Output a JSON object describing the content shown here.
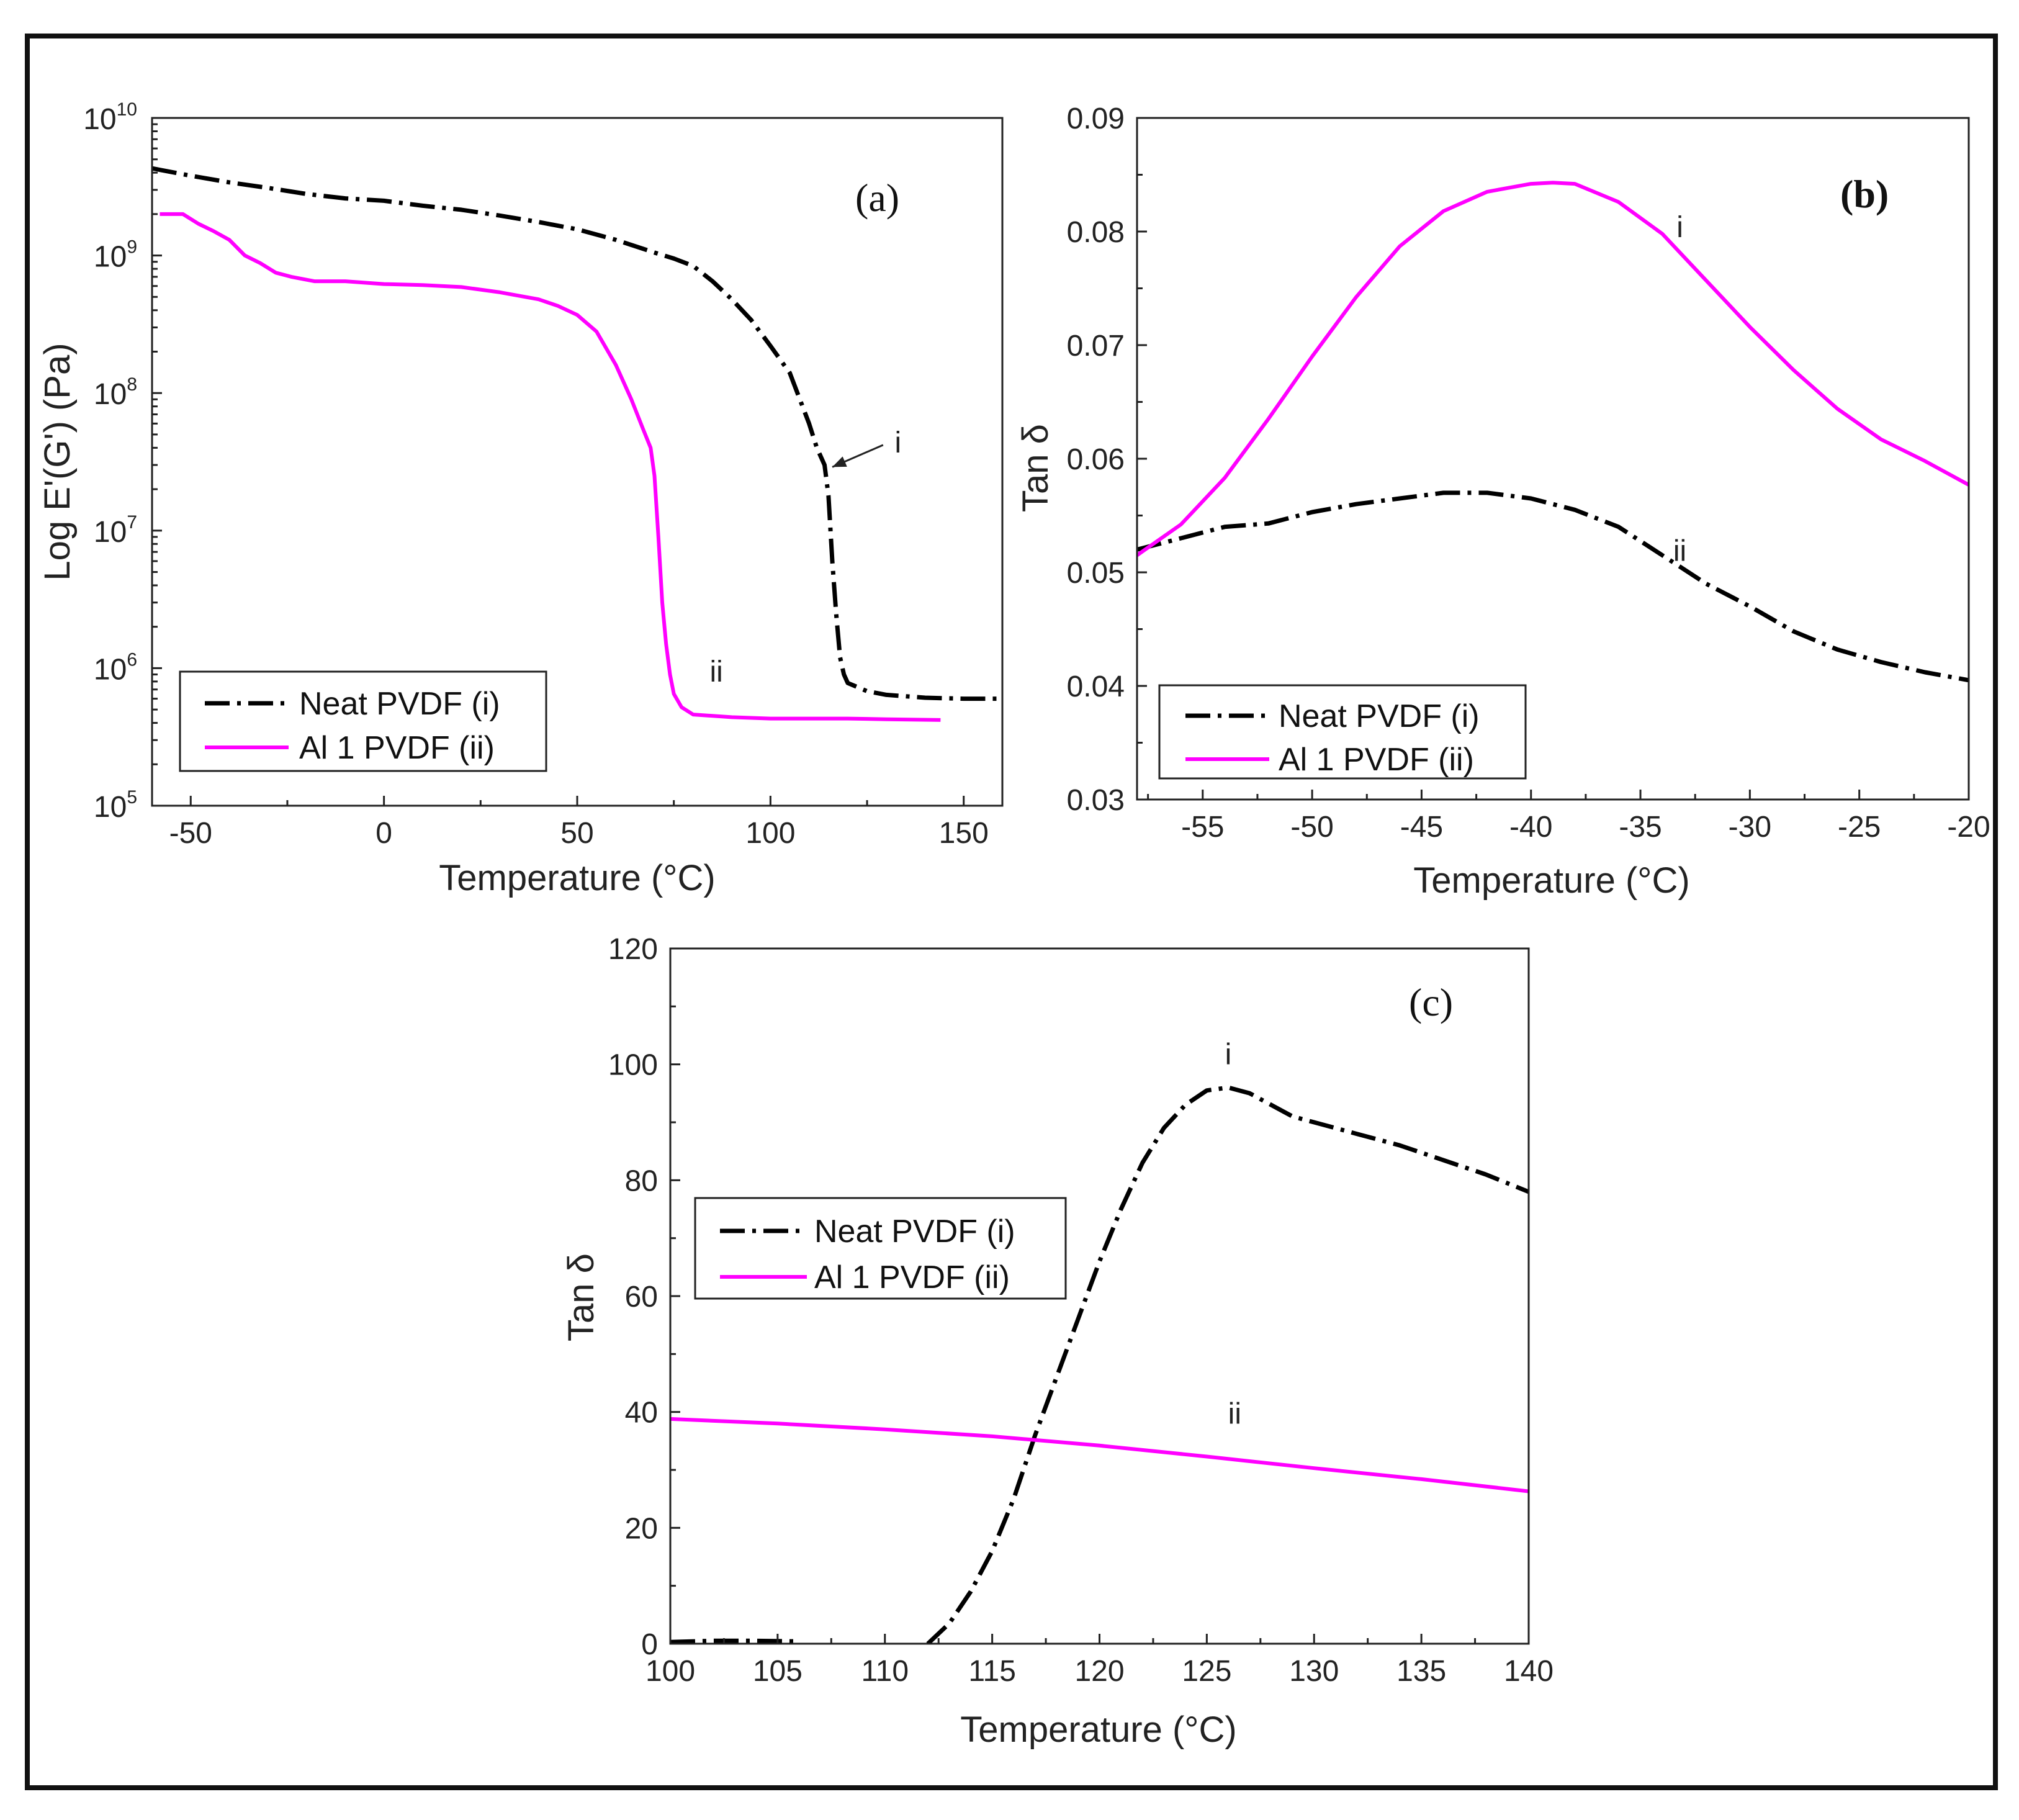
{
  "colors": {
    "neat": "#000000",
    "al": "#ff00ff",
    "axis": "#222222",
    "frame": "#111111"
  },
  "chart_data": [
    {
      "id": "a",
      "type": "line",
      "panel_label": "(a)",
      "xlabel": "Temperature (°C)",
      "ylabel": "Log E'(G') (Pa)",
      "yscale": "log",
      "xlim": [
        -60,
        160
      ],
      "ylim": [
        100000,
        10000000000
      ],
      "xticks": [
        -50,
        0,
        50,
        100,
        150
      ],
      "yticks": [
        {
          "value": 100000,
          "base": "10",
          "exp": "5"
        },
        {
          "value": 1000000,
          "base": "10",
          "exp": "6"
        },
        {
          "value": 10000000,
          "base": "10",
          "exp": "7"
        },
        {
          "value": 100000000,
          "base": "10",
          "exp": "8"
        },
        {
          "value": 1000000000,
          "base": "10",
          "exp": "9"
        },
        {
          "value": 10000000000,
          "base": "10",
          "exp": "10"
        }
      ],
      "legend": {
        "position": "bottom-left",
        "entries": [
          "Neat PVDF (i)",
          "Al 1 PVDF (ii)"
        ]
      },
      "annotations": [
        {
          "text": "i",
          "x": 133,
          "y": 37000000,
          "arrow_to": [
            116,
            29000000
          ]
        },
        {
          "text": "ii",
          "x": 86,
          "y": 800000
        }
      ],
      "series": [
        {
          "name": "Neat PVDF (i)",
          "style": "neat",
          "x": [
            -60,
            -50,
            -40,
            -30,
            -20,
            -10,
            0,
            10,
            20,
            30,
            40,
            50,
            60,
            70,
            75,
            80,
            85,
            90,
            95,
            100,
            105,
            110,
            112,
            114,
            115,
            116,
            117,
            118,
            119,
            120,
            125,
            130,
            140,
            150,
            160
          ],
          "y": [
            4300000000,
            3800000000,
            3400000000,
            3100000000,
            2800000000,
            2600000000,
            2500000000,
            2300000000,
            2150000000,
            1950000000,
            1750000000,
            1550000000,
            1300000000,
            1050000000,
            950000000,
            840000000,
            650000000,
            480000000,
            340000000,
            220000000,
            140000000,
            60000000,
            40000000,
            30000000,
            18000000,
            6000000,
            2500000,
            1200000,
            900000,
            780000,
            680000,
            640000,
            610000,
            600000,
            600000
          ]
        },
        {
          "name": "Al 1 PVDF (ii)",
          "style": "al",
          "x": [
            -58,
            -52,
            -48,
            -44,
            -40,
            -36,
            -32,
            -28,
            -24,
            -18,
            -10,
            0,
            10,
            20,
            30,
            40,
            45,
            50,
            55,
            60,
            64,
            67,
            69,
            70,
            71,
            72,
            73,
            74,
            75,
            77,
            80,
            90,
            100,
            110,
            120,
            130,
            144
          ],
          "y": [
            2000000000,
            2000000000,
            1700000000,
            1500000000,
            1300000000,
            1000000000,
            880000000,
            750000000,
            700000000,
            650000000,
            650000000,
            620000000,
            610000000,
            590000000,
            540000000,
            480000000,
            430000000,
            370000000,
            280000000,
            160000000,
            90000000,
            55000000,
            40000000,
            25000000,
            9000000,
            3000000,
            1500000,
            900000,
            650000,
            520000,
            460000,
            440000,
            430000,
            430000,
            430000,
            425000,
            420000
          ]
        }
      ]
    },
    {
      "id": "b",
      "type": "line",
      "panel_label": "(b)",
      "xlabel": "Temperature (°C)",
      "ylabel": "Tan δ",
      "xlim": [
        -58,
        -20
      ],
      "ylim": [
        0.03,
        0.09
      ],
      "xticks": [
        -55,
        -50,
        -45,
        -40,
        -35,
        -30,
        -25,
        -20
      ],
      "yticks": [
        0.03,
        0.04,
        0.05,
        0.06,
        0.07,
        0.08,
        0.09
      ],
      "legend": {
        "position": "bottom-left",
        "entries": [
          "Neat PVDF (i)",
          "Al 1 PVDF (ii)"
        ]
      },
      "annotations": [
        {
          "text": "i",
          "x": -33.2,
          "y": 0.0795
        },
        {
          "text": "ii",
          "x": -33.2,
          "y": 0.051
        }
      ],
      "series": [
        {
          "name": "Neat PVDF (i)",
          "style": "neat",
          "x": [
            -58,
            -56,
            -54,
            -52,
            -50,
            -48,
            -46,
            -44,
            -42,
            -40,
            -38,
            -36,
            -34,
            -32,
            -30,
            -28,
            -26,
            -24,
            -22,
            -20
          ],
          "y": [
            0.052,
            0.053,
            0.054,
            0.0543,
            0.0553,
            0.056,
            0.0565,
            0.057,
            0.057,
            0.0565,
            0.0555,
            0.054,
            0.0515,
            0.049,
            0.047,
            0.0448,
            0.0432,
            0.0421,
            0.0412,
            0.0405
          ]
        },
        {
          "name": "Al 1 PVDF (ii)",
          "style": "al",
          "x": [
            -58,
            -56,
            -54,
            -52,
            -50,
            -48,
            -46,
            -44,
            -42,
            -40,
            -39,
            -38,
            -36,
            -34,
            -32,
            -30,
            -28,
            -26,
            -24,
            -22,
            -20
          ],
          "y": [
            0.0515,
            0.0542,
            0.0583,
            0.0635,
            0.069,
            0.0742,
            0.0787,
            0.0818,
            0.0835,
            0.0842,
            0.0843,
            0.0842,
            0.0826,
            0.0798,
            0.0757,
            0.0716,
            0.0678,
            0.0644,
            0.0617,
            0.0598,
            0.0577
          ]
        }
      ]
    },
    {
      "id": "c",
      "type": "line",
      "panel_label": "(c)",
      "xlabel": "Temperature (°C)",
      "ylabel": "Tan δ",
      "xlim": [
        100,
        140
      ],
      "ylim": [
        0,
        120
      ],
      "xticks": [
        100,
        105,
        110,
        115,
        120,
        125,
        130,
        135,
        140
      ],
      "yticks": [
        0,
        20,
        40,
        60,
        80,
        100,
        120
      ],
      "legend": {
        "position": "upper-left",
        "entries": [
          "Neat PVDF (i)",
          "Al 1 PVDF (ii)"
        ]
      },
      "annotations": [
        {
          "text": "i",
          "x": 126,
          "y": 100
        },
        {
          "text": "ii",
          "x": 126.3,
          "y": 38
        }
      ],
      "series": [
        {
          "name": "Neat PVDF (i)",
          "style": "neat",
          "segments": [
            {
              "x": [
                100,
                102,
                104,
                106
              ],
              "y": [
                0.3,
                0.5,
                0.5,
                0.4
              ]
            },
            {
              "x": [
                112,
                113,
                114,
                115,
                116,
                117,
                118,
                119,
                120,
                121,
                122,
                123,
                124,
                125,
                126,
                127,
                128,
                129,
                130,
                132,
                134,
                136,
                138,
                140
              ],
              "y": [
                0,
                3.5,
                9,
                16,
                25,
                36,
                46,
                56,
                66,
                75,
                83,
                89,
                93,
                95.5,
                96,
                95,
                93,
                91,
                90,
                88,
                86,
                83.5,
                81,
                78
              ]
            }
          ]
        },
        {
          "name": "Al 1 PVDF (ii)",
          "style": "al",
          "x": [
            100,
            105,
            110,
            115,
            120,
            125,
            130,
            135,
            140
          ],
          "y": [
            38.8,
            38,
            37,
            35.8,
            34.2,
            32.3,
            30.3,
            28.4,
            26.3
          ]
        }
      ]
    }
  ]
}
